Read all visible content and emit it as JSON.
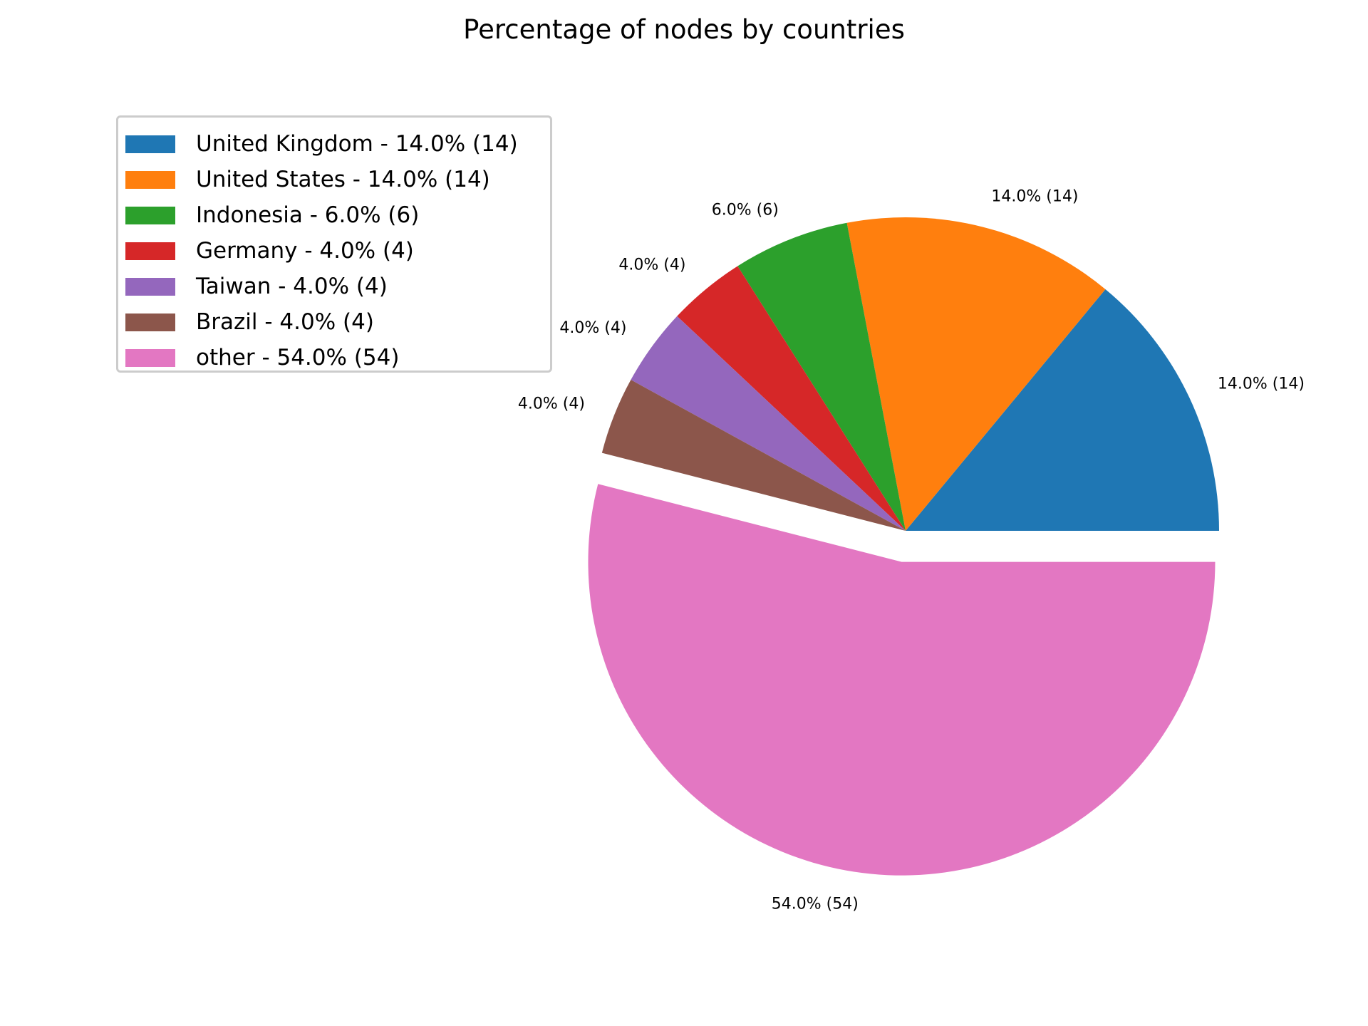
{
  "chart_data": {
    "type": "pie",
    "title": "Percentage of nodes by countries",
    "slices": [
      {
        "name": "United Kingdom",
        "percent": 14.0,
        "count": 14,
        "color": "#1f77b4",
        "legend": "United Kingdom - 14.0% (14)",
        "label": "14.0% (14)",
        "explode": false
      },
      {
        "name": "United States",
        "percent": 14.0,
        "count": 14,
        "color": "#ff7f0e",
        "legend": "United States - 14.0% (14)",
        "label": "14.0% (14)",
        "explode": false
      },
      {
        "name": "Indonesia",
        "percent": 6.0,
        "count": 6,
        "color": "#2ca02c",
        "legend": "Indonesia - 6.0% (6)",
        "label": "6.0% (6)",
        "explode": false
      },
      {
        "name": "Germany",
        "percent": 4.0,
        "count": 4,
        "color": "#d62728",
        "legend": "Germany - 4.0% (4)",
        "label": "4.0% (4)",
        "explode": false
      },
      {
        "name": "Taiwan",
        "percent": 4.0,
        "count": 4,
        "color": "#9467bd",
        "legend": "Taiwan - 4.0% (4)",
        "label": "4.0% (4)",
        "explode": false
      },
      {
        "name": "Brazil",
        "percent": 4.0,
        "count": 4,
        "color": "#8c564b",
        "legend": "Brazil - 4.0% (4)",
        "label": "4.0% (4)",
        "explode": false
      },
      {
        "name": "other",
        "percent": 54.0,
        "count": 54,
        "color": "#e377c2",
        "legend": "other - 54.0% (54)",
        "label": "54.0% (54)",
        "explode": true
      }
    ],
    "start_angle_deg": 0,
    "direction": "counterclockwise",
    "legend_position": "upper-left"
  }
}
